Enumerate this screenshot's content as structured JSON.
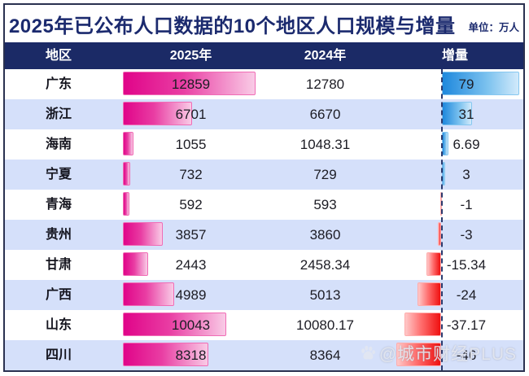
{
  "title": "2025年已公布人口数据的10个地区人口规模与增量",
  "unit_label": "单位：万人",
  "watermark_text": "@城市财经PLUS",
  "columns": [
    "地区",
    "2025年",
    "2024年",
    "增量"
  ],
  "colors": {
    "header_bg": "#1b2a66",
    "title_text": "#1b2a6e",
    "alt_row_bg": "#d5e0fa",
    "bar_2025_start": "#e00489",
    "bar_2025_end": "#f9cbe6",
    "bar_positive_start": "#1e88dd",
    "bar_positive_end": "#d2eafb",
    "bar_negative_start": "#ffc9c9",
    "bar_negative_end": "#ef1010"
  },
  "chart_data": {
    "type": "table",
    "title": "2025年已公布人口数据的10个地区人口规模与增量",
    "unit": "万人",
    "columns": [
      "地区",
      "2025年",
      "2024年",
      "增量"
    ],
    "bars": {
      "col_2025": "pink gradient bar proportional to value",
      "col_delta": "blue bar right of dashed zero axis if positive, red bar left of axis if negative"
    },
    "rows": [
      {
        "region": "广东",
        "v2025": 12859,
        "v2024": 12780,
        "delta": 79
      },
      {
        "region": "浙江",
        "v2025": 6701,
        "v2024": 6670,
        "delta": 31
      },
      {
        "region": "海南",
        "v2025": 1055,
        "v2024": 1048.31,
        "delta": 6.69
      },
      {
        "region": "宁夏",
        "v2025": 732,
        "v2024": 729,
        "delta": 3
      },
      {
        "region": "青海",
        "v2025": 592,
        "v2024": 593,
        "delta": -1
      },
      {
        "region": "贵州",
        "v2025": 3857,
        "v2024": 3860,
        "delta": -3
      },
      {
        "region": "甘肃",
        "v2025": 2443,
        "v2024": 2458.34,
        "delta": -15.34
      },
      {
        "region": "广西",
        "v2025": 4989,
        "v2024": 5013,
        "delta": -24
      },
      {
        "region": "山东",
        "v2025": 10043,
        "v2024": 10080.17,
        "delta": -37.17
      },
      {
        "region": "四川",
        "v2025": 8318,
        "v2024": 8364,
        "delta": -46
      }
    ]
  }
}
